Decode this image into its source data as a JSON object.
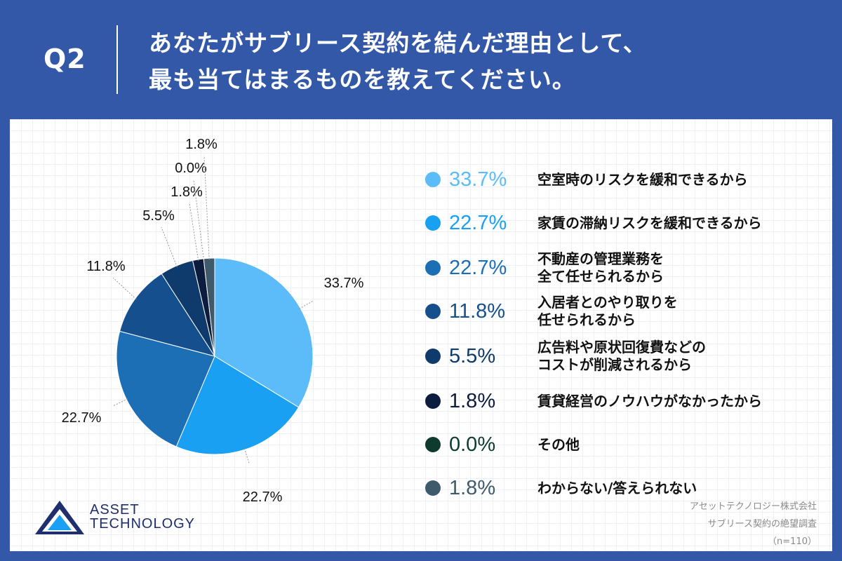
{
  "header": {
    "q_label": "Q2",
    "question_line1": "あなたがサブリース契約を結んだ理由として、",
    "question_line2": "最も当てはまるものを教えてください。"
  },
  "chart_data": {
    "type": "pie",
    "title": "",
    "slices": [
      {
        "label": "空室時のリスクを緩和できるから",
        "value": 33.7,
        "display": "33.7%",
        "color": "#5bbcf9"
      },
      {
        "label": "家賃の滞納リスクを緩和できるから",
        "value": 22.7,
        "display": "22.7%",
        "color": "#1aa0f3"
      },
      {
        "label": "不動産の管理業務を\n全て任せられるから",
        "value": 22.7,
        "display": "22.7%",
        "color": "#1c6fb5"
      },
      {
        "label": "入居者とのやり取りを\n任せられるから",
        "value": 11.8,
        "display": "11.8%",
        "color": "#154f8e"
      },
      {
        "label": "広告料や原状回復費などの\nコストが削減されるから",
        "value": 5.5,
        "display": "5.5%",
        "color": "#0f3a6c"
      },
      {
        "label": "賃貸経営のノウハウがなかったから",
        "value": 1.8,
        "display": "1.8%",
        "color": "#0c1c3f"
      },
      {
        "label": "その他",
        "value": 0.0,
        "display": "0.0%",
        "color": "#0f3b2e"
      },
      {
        "label": "わからない/答えられない",
        "value": 1.8,
        "display": "1.8%",
        "color": "#3f5a6b"
      }
    ],
    "legend_placement": "right"
  },
  "logo": {
    "line1": "ASSET",
    "line2": "TECHNOLOGY"
  },
  "source": {
    "line1": "アセットテクノロジー株式会社",
    "line2": "サブリース契約の絶望調査",
    "line3": "（n=110）"
  }
}
